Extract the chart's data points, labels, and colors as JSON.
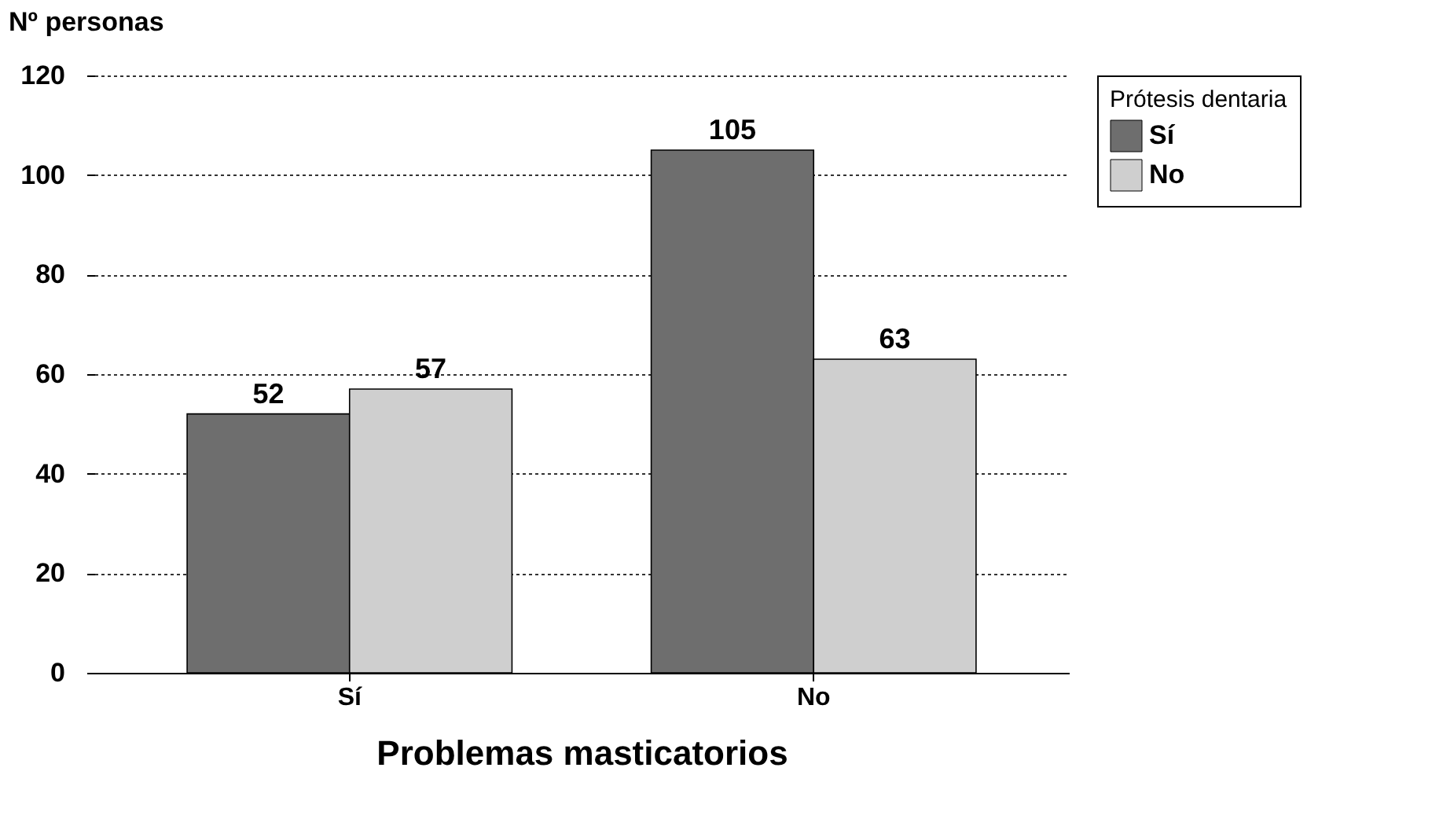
{
  "chart_data": {
    "type": "bar",
    "xlabel": "Problemas masticatorios",
    "ylabel": "Nº personas",
    "legend_title": "Prótesis dentaria",
    "categories": [
      "Sí",
      "No"
    ],
    "series": [
      {
        "name": "Sí",
        "color": "#6e6e6e",
        "values": [
          52,
          105
        ]
      },
      {
        "name": "No",
        "color": "#cfcfcf",
        "values": [
          57,
          63
        ]
      }
    ],
    "ylim": [
      0,
      120
    ],
    "yticks": [
      0,
      20,
      40,
      60,
      80,
      100,
      120
    ],
    "grid": "y",
    "legend": "right",
    "data_labels": true
  }
}
